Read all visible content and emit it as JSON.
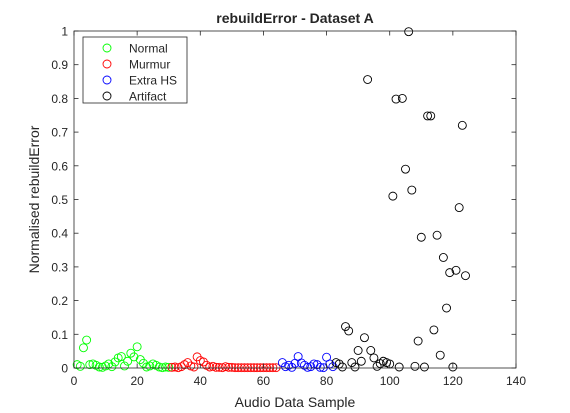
{
  "chart_data": {
    "type": "scatter",
    "title": "rebuildError - Dataset A",
    "xlabel": "Audio Data Sample",
    "ylabel": "Normalised rebuildError",
    "xlim": [
      0,
      140
    ],
    "ylim": [
      0,
      1
    ],
    "xticks": [
      "0",
      "20",
      "40",
      "60",
      "80",
      "100",
      "120",
      "140"
    ],
    "yticks": [
      "0",
      "0.1",
      "0.2",
      "0.3",
      "0.4",
      "0.5",
      "0.6",
      "0.7",
      "0.8",
      "0.9",
      "1"
    ],
    "grid": false,
    "legend_position": "top-left",
    "marker": "open-circle",
    "series": [
      {
        "name": "Normal",
        "color": "#00ff00",
        "points": [
          [
            1,
            0.01
          ],
          [
            2,
            0.005
          ],
          [
            3,
            0.06
          ],
          [
            4,
            0.083
          ],
          [
            5,
            0.01
          ],
          [
            6,
            0.012
          ],
          [
            7,
            0.008
          ],
          [
            8,
            0.003
          ],
          [
            9,
            0.002
          ],
          [
            10,
            0.006
          ],
          [
            11,
            0.012
          ],
          [
            12,
            0.004
          ],
          [
            13,
            0.018
          ],
          [
            14,
            0.03
          ],
          [
            15,
            0.034
          ],
          [
            16,
            0.006
          ],
          [
            17,
            0.02
          ],
          [
            18,
            0.044
          ],
          [
            19,
            0.033
          ],
          [
            20,
            0.063
          ],
          [
            21,
            0.025
          ],
          [
            22,
            0.014
          ],
          [
            23,
            0.003
          ],
          [
            24,
            0.006
          ],
          [
            25,
            0.012
          ],
          [
            26,
            0.008
          ],
          [
            27,
            0.003
          ],
          [
            28,
            0.001
          ],
          [
            29,
            0.003
          ],
          [
            30,
            0.002
          ]
        ]
      },
      {
        "name": "Murmur",
        "color": "#ff0000",
        "points": [
          [
            31,
            0.002
          ],
          [
            32,
            0.003
          ],
          [
            33,
            0.001
          ],
          [
            34,
            0.004
          ],
          [
            35,
            0.01
          ],
          [
            36,
            0.016
          ],
          [
            37,
            0.006
          ],
          [
            38,
            0.003
          ],
          [
            39,
            0.033
          ],
          [
            40,
            0.022
          ],
          [
            41,
            0.018
          ],
          [
            42,
            0.008
          ],
          [
            43,
            0.003
          ],
          [
            44,
            0.005
          ],
          [
            45,
            0.002
          ],
          [
            46,
            0.002
          ],
          [
            47,
            0.001
          ],
          [
            48,
            0.004
          ],
          [
            49,
            0.002
          ],
          [
            50,
            0.002
          ],
          [
            51,
            0.001
          ],
          [
            52,
            0.001
          ],
          [
            53,
            0.001
          ],
          [
            54,
            0.001
          ],
          [
            55,
            0.001
          ],
          [
            56,
            0.001
          ],
          [
            57,
            0.001
          ],
          [
            58,
            0.001
          ],
          [
            59,
            0.001
          ],
          [
            60,
            0.001
          ],
          [
            61,
            0.001
          ],
          [
            62,
            0.001
          ],
          [
            63,
            0.001
          ],
          [
            64,
            0.001
          ]
        ]
      },
      {
        "name": "Extra HS",
        "color": "#0000ff",
        "points": [
          [
            66,
            0.016
          ],
          [
            67,
            0.004
          ],
          [
            68,
            0.008
          ],
          [
            69,
            0.002
          ],
          [
            70,
            0.014
          ],
          [
            71,
            0.034
          ],
          [
            72,
            0.015
          ],
          [
            73,
            0.008
          ],
          [
            74,
            0.002
          ],
          [
            75,
            0.004
          ],
          [
            76,
            0.012
          ],
          [
            77,
            0.01
          ],
          [
            78,
            0.002
          ],
          [
            79,
            0.001
          ],
          [
            80,
            0.032
          ],
          [
            81,
            0.012
          ],
          [
            82,
            0.004
          ]
        ]
      },
      {
        "name": "Artifact",
        "color": "#000000",
        "points": [
          [
            83,
            0.016
          ],
          [
            84,
            0.012
          ],
          [
            85,
            0.003
          ],
          [
            86,
            0.123
          ],
          [
            87,
            0.11
          ],
          [
            88,
            0.016
          ],
          [
            89,
            0.003
          ],
          [
            90,
            0.052
          ],
          [
            91,
            0.02
          ],
          [
            92,
            0.09
          ],
          [
            93,
            0.856
          ],
          [
            94,
            0.052
          ],
          [
            95,
            0.03
          ],
          [
            96,
            0.005
          ],
          [
            97,
            0.013
          ],
          [
            98,
            0.02
          ],
          [
            99,
            0.016
          ],
          [
            100,
            0.012
          ],
          [
            101,
            0.51
          ],
          [
            102,
            0.798
          ],
          [
            103,
            0.003
          ],
          [
            104,
            0.8
          ],
          [
            105,
            0.59
          ],
          [
            106,
            0.998
          ],
          [
            107,
            0.528
          ],
          [
            108,
            0.005
          ],
          [
            109,
            0.08
          ],
          [
            110,
            0.388
          ],
          [
            111,
            0.003
          ],
          [
            112,
            0.748
          ],
          [
            113,
            0.748
          ],
          [
            114,
            0.113
          ],
          [
            115,
            0.394
          ],
          [
            116,
            0.038
          ],
          [
            117,
            0.328
          ],
          [
            118,
            0.178
          ],
          [
            119,
            0.283
          ],
          [
            120,
            0.003
          ],
          [
            121,
            0.29
          ],
          [
            122,
            0.476
          ],
          [
            123,
            0.72
          ],
          [
            124,
            0.274
          ]
        ]
      }
    ]
  }
}
